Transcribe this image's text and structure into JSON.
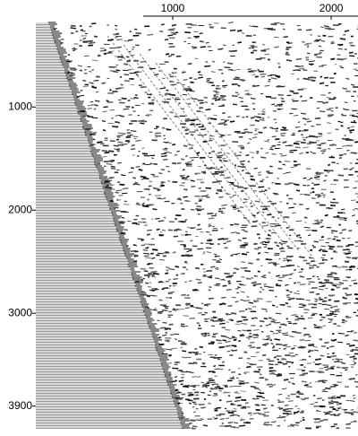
{
  "chart_data": {
    "type": "seismic-section",
    "xlim": [
      136,
      2169
    ],
    "xticks": [
      1000,
      2000
    ],
    "ylim": [
      180,
      4120
    ],
    "yticks": [
      1000,
      2000,
      3000,
      3900
    ]
  }
}
